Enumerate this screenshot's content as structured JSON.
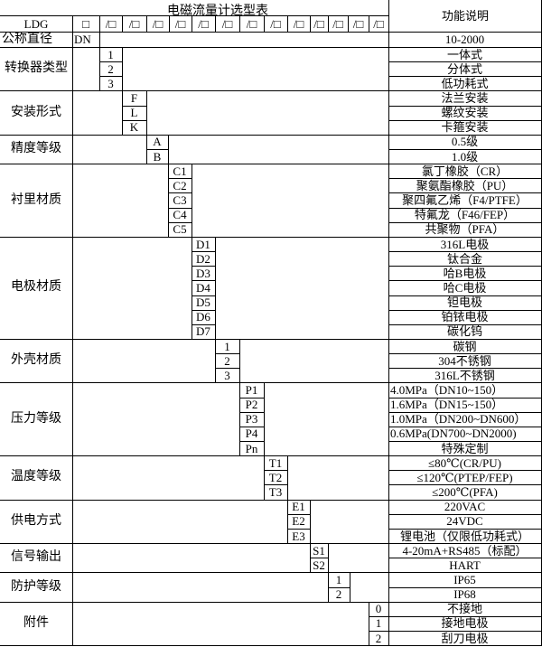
{
  "title": "电磁流量计选型表",
  "desc_header": "功能说明",
  "header_row": {
    "model": "LDG",
    "first_box": "□",
    "boxes": [
      "/□",
      "/□",
      "/□",
      "/□",
      "/□",
      "/□",
      "/□",
      "/□",
      "/□",
      "/□",
      "/□",
      "/□",
      "/□"
    ]
  },
  "nominal_diameter": {
    "label": "公称直径",
    "code": "DN",
    "desc": "10-2000"
  },
  "groups": [
    {
      "label": "转换器类型",
      "col": 0,
      "items": [
        {
          "code": "1",
          "desc": "一体式"
        },
        {
          "code": "2",
          "desc": "分体式"
        },
        {
          "code": "3",
          "desc": "低功耗式"
        }
      ]
    },
    {
      "label": "安装形式",
      "col": 1,
      "items": [
        {
          "code": "F",
          "desc": "法兰安装"
        },
        {
          "code": "L",
          "desc": "螺纹安装"
        },
        {
          "code": "K",
          "desc": "卡箍安装"
        }
      ]
    },
    {
      "label": "精度等级",
      "col": 2,
      "items": [
        {
          "code": "A",
          "desc": "0.5级"
        },
        {
          "code": "B",
          "desc": "1.0级"
        }
      ]
    },
    {
      "label": "衬里材质",
      "col": 3,
      "items": [
        {
          "code": "C1",
          "desc": "氯丁橡胶（CR）"
        },
        {
          "code": "C2",
          "desc": "聚氨酯橡胶（PU）"
        },
        {
          "code": "C3",
          "desc": "聚四氟乙烯（F4/PTFE）"
        },
        {
          "code": "C4",
          "desc": "特氟龙（F46/FEP）"
        },
        {
          "code": "C5",
          "desc": "共聚物（PFA）"
        }
      ]
    },
    {
      "label": "电极材质",
      "col": 4,
      "items": [
        {
          "code": "D1",
          "desc": "316L电极"
        },
        {
          "code": "D2",
          "desc": "钛合金"
        },
        {
          "code": "D3",
          "desc": "哈B电极"
        },
        {
          "code": "D4",
          "desc": "哈C电极"
        },
        {
          "code": "D5",
          "desc": "钽电极"
        },
        {
          "code": "D6",
          "desc": "铂铱电极"
        },
        {
          "code": "D7",
          "desc": "碳化钨"
        }
      ]
    },
    {
      "label": "外壳材质",
      "col": 5,
      "items": [
        {
          "code": "1",
          "desc": "碳钢"
        },
        {
          "code": "2",
          "desc": "304不锈钢"
        },
        {
          "code": "3",
          "desc": "316L不锈钢"
        }
      ]
    },
    {
      "label": "压力等级",
      "col": 6,
      "items": [
        {
          "code": "P1",
          "desc": "4.0MPa（DN10~150）",
          "align": "left"
        },
        {
          "code": "P2",
          "desc": "1.6MPa（DN15~150）",
          "align": "left"
        },
        {
          "code": "P3",
          "desc": "1.0MPa（DN200~DN600）",
          "align": "left"
        },
        {
          "code": "P4",
          "desc": "0.6MPa(DN700~DN2000)",
          "align": "left"
        },
        {
          "code": "Pn",
          "desc": "特殊定制"
        }
      ]
    },
    {
      "label": "温度等级",
      "col": 7,
      "items": [
        {
          "code": "T1",
          "desc": "≤80℃(CR/PU)"
        },
        {
          "code": "T2",
          "desc": "≤120℃(PTEP/FEP)"
        },
        {
          "code": "T3",
          "desc": "≤200℃(PFA)"
        }
      ]
    },
    {
      "label": "供电方式",
      "col": 8,
      "items": [
        {
          "code": "E1",
          "desc": "220VAC"
        },
        {
          "code": "E2",
          "desc": "24VDC"
        },
        {
          "code": "E3",
          "desc": "锂电池（仅限低功耗式）"
        }
      ]
    },
    {
      "label": "信号输出",
      "col": 9,
      "items": [
        {
          "code": "S1",
          "desc": "4-20mA+RS485（标配）"
        },
        {
          "code": "S2",
          "desc": "HART"
        }
      ]
    },
    {
      "label": "防护等级",
      "col": 10,
      "items": [
        {
          "code": "1",
          "desc": "IP65"
        },
        {
          "code": "2",
          "desc": "IP68"
        }
      ]
    },
    {
      "label": "附件",
      "col": 12,
      "items": [
        {
          "code": "0",
          "desc": "不接地"
        },
        {
          "code": "1",
          "desc": "接地电极"
        },
        {
          "code": "2",
          "desc": "刮刀电极"
        }
      ]
    }
  ]
}
